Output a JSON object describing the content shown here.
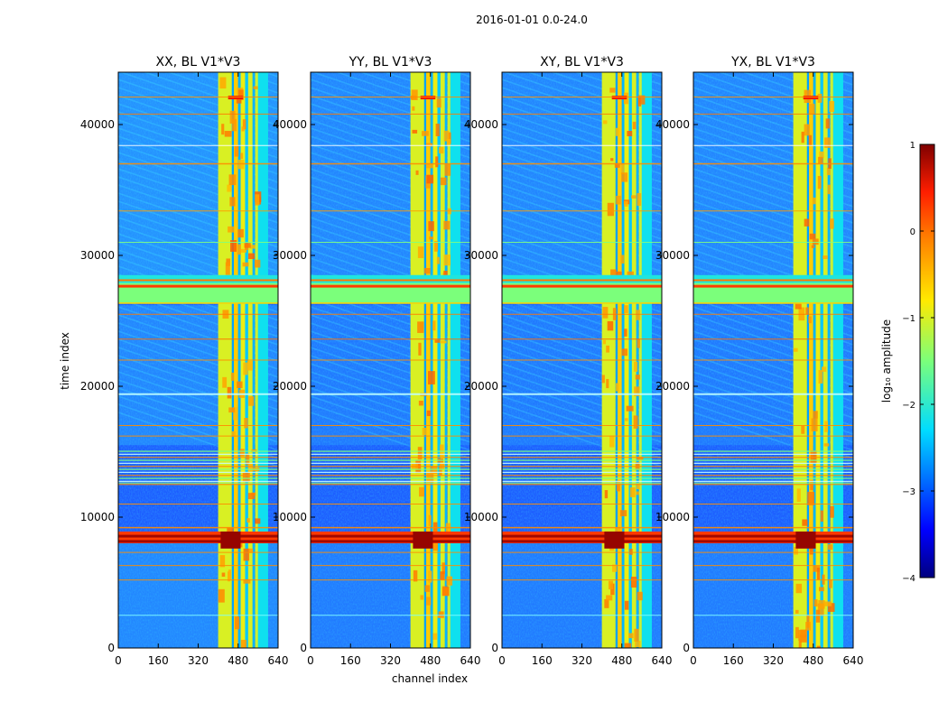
{
  "chart_data": {
    "type": "heatmap",
    "suptitle": "2016-01-01 0.0-24.0",
    "xlabel": "channel index",
    "ylabel": "time index",
    "xlim": [
      0,
      640
    ],
    "ylim": [
      0,
      44000
    ],
    "x_ticks": [
      0,
      160,
      320,
      480,
      640
    ],
    "y_ticks": [
      0,
      10000,
      20000,
      30000,
      40000
    ],
    "panels": [
      {
        "title": "XX, BL V1*V3"
      },
      {
        "title": "YY, BL V1*V3"
      },
      {
        "title": "XY, BL V1*V3"
      },
      {
        "title": "YX, BL V1*V3"
      }
    ],
    "colorbar": {
      "label": "log₁₀ amplitude",
      "range": [
        -4,
        1
      ],
      "ticks": [
        1,
        0,
        -1,
        -2,
        -3,
        -4
      ],
      "colormap": "jet"
    },
    "features": {
      "bright_channel_band": [
        400,
        600
      ],
      "saturated_time_band": [
        26300,
        27900
      ],
      "strong_rfi_time": [
        8000,
        8900
      ],
      "dense_flagged_time": [
        12500,
        15200
      ]
    }
  }
}
